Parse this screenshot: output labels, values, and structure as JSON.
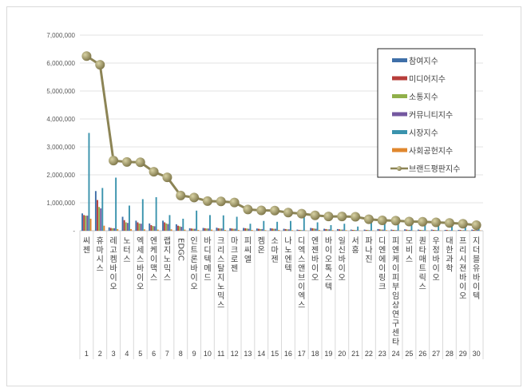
{
  "chart_data": {
    "type": "bar+line",
    "ylim": [
      0,
      7000000
    ],
    "yticks": [
      "-",
      "1,000,000",
      "2,000,000",
      "3,000,000",
      "4,000,000",
      "5,000,000",
      "6,000,000",
      "7,000,000"
    ],
    "grid": true,
    "legend_position": "top-right",
    "categories": [
      "씨젠",
      "휴마시스",
      "레고켐바이오",
      "노터스",
      "엑세스바이오",
      "엔케이맥스",
      "랩지노믹스",
      "EDGC",
      "인트론바이오",
      "바디텍메드",
      "크리스탈지노믹스",
      "마크로젠",
      "피씨엘",
      "켐온",
      "소마젠",
      "나노엔텍",
      "디엑스앤브이엑스",
      "엔젠바이오",
      "바이오톡스텍",
      "일신바이오",
      "서흥",
      "파나진",
      "디엔에이링크",
      "피엔케이피부임상연구센타",
      "모비스",
      "퀀타매트릭스",
      "우정바이오",
      "대한과학",
      "프리시젼바이오",
      "지더블유바이텍"
    ],
    "ranks": [
      "1",
      "2",
      "3",
      "4",
      "5",
      "6",
      "7",
      "8",
      "9",
      "10",
      "11",
      "12",
      "13",
      "14",
      "15",
      "16",
      "17",
      "18",
      "19",
      "20",
      "21",
      "22",
      "23",
      "24",
      "25",
      "26",
      "27",
      "28",
      "29",
      "30"
    ],
    "series": [
      {
        "name": "참여지수",
        "color": "#3f6fa8",
        "type": "bar",
        "values": [
          620000,
          1420000,
          120000,
          500000,
          360000,
          260000,
          360000,
          230000,
          90000,
          100000,
          110000,
          90000,
          100000,
          80000,
          90000,
          70000,
          40000,
          100000,
          70000,
          60000,
          40000,
          40000,
          60000,
          40000,
          50000,
          40000,
          40000,
          30000,
          30000,
          40000
        ]
      },
      {
        "name": "미디어지수",
        "color": "#b73d3a",
        "type": "bar",
        "values": [
          560000,
          1100000,
          100000,
          380000,
          300000,
          200000,
          300000,
          180000,
          80000,
          90000,
          90000,
          80000,
          90000,
          70000,
          80000,
          60000,
          30000,
          90000,
          60000,
          50000,
          30000,
          30000,
          50000,
          30000,
          40000,
          30000,
          30000,
          30000,
          30000,
          30000
        ]
      },
      {
        "name": "소통지수",
        "color": "#90b04a",
        "type": "bar",
        "values": [
          540000,
          850000,
          90000,
          300000,
          260000,
          170000,
          260000,
          160000,
          70000,
          80000,
          80000,
          70000,
          80000,
          60000,
          70000,
          50000,
          30000,
          80000,
          50000,
          40000,
          30000,
          30000,
          40000,
          30000,
          30000,
          30000,
          30000,
          20000,
          20000,
          30000
        ]
      },
      {
        "name": "커뮤니티지수",
        "color": "#7458a0",
        "type": "bar",
        "values": [
          540000,
          800000,
          90000,
          280000,
          250000,
          160000,
          240000,
          140000,
          70000,
          80000,
          80000,
          70000,
          70000,
          60000,
          70000,
          50000,
          20000,
          70000,
          50000,
          40000,
          20000,
          20000,
          40000,
          20000,
          30000,
          20000,
          20000,
          20000,
          20000,
          30000
        ]
      },
      {
        "name": "시장지수",
        "color": "#3a93ad",
        "type": "bar",
        "values": [
          3500000,
          1530000,
          1900000,
          900000,
          1130000,
          1200000,
          560000,
          430000,
          720000,
          560000,
          550000,
          500000,
          250000,
          350000,
          320000,
          350000,
          560000,
          300000,
          200000,
          250000,
          150000,
          300000,
          250000,
          300000,
          250000,
          300000,
          200000,
          250000,
          300000,
          200000
        ]
      },
      {
        "name": "사회공헌지수",
        "color": "#e0872e",
        "type": "bar",
        "values": [
          430000,
          180000,
          60000,
          60000,
          50000,
          40000,
          50000,
          40000,
          30000,
          40000,
          30000,
          30000,
          30000,
          20000,
          30000,
          20000,
          10000,
          30000,
          20000,
          20000,
          10000,
          10000,
          20000,
          10000,
          10000,
          10000,
          10000,
          10000,
          10000,
          10000
        ]
      },
      {
        "name": "브랜드평판지수",
        "color": "#8c8455",
        "type": "line",
        "values": [
          6250000,
          5940000,
          2510000,
          2460000,
          2450000,
          2110000,
          1910000,
          1260000,
          1190000,
          1060000,
          1050000,
          1010000,
          760000,
          730000,
          720000,
          650000,
          610000,
          550000,
          510000,
          510000,
          500000,
          410000,
          370000,
          360000,
          330000,
          320000,
          300000,
          280000,
          250000,
          200000
        ]
      }
    ]
  }
}
